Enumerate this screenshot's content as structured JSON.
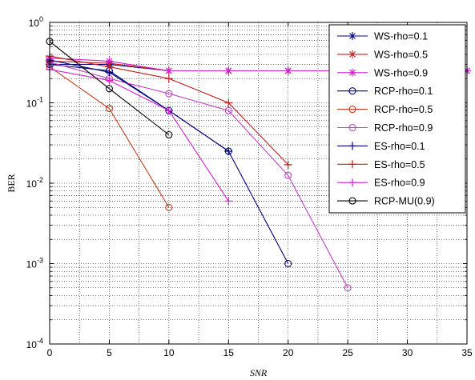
{
  "chart_data": {
    "type": "line",
    "title": "",
    "xlabel": "SNR",
    "ylabel": "BER",
    "x_scale": "linear",
    "y_scale": "log",
    "xlim": [
      0,
      35
    ],
    "ylim": [
      0.0001,
      1
    ],
    "x_ticks": [
      "0",
      "5",
      "10",
      "15",
      "20",
      "25",
      "30",
      "35"
    ],
    "y_ticks": [
      {
        "base": "10",
        "exp": "0",
        "value": 1
      },
      {
        "base": "10",
        "exp": "-1",
        "value": 0.1
      },
      {
        "base": "10",
        "exp": "-2",
        "value": 0.01
      },
      {
        "base": "10",
        "exp": "-3",
        "value": 0.001
      },
      {
        "base": "10",
        "exp": "-4",
        "value": 0.0001
      }
    ],
    "grid": true,
    "legend_position": "top-right",
    "series": [
      {
        "name": "WS-rho=0.1",
        "color": "#00007f",
        "marker": "asterisk",
        "x": [
          0,
          5,
          10,
          15,
          20,
          25,
          30,
          35
        ],
        "y": [
          0.3,
          0.3,
          0.25,
          0.25,
          0.25,
          0.25,
          0.25,
          0.25
        ]
      },
      {
        "name": "WS-rho=0.5",
        "color": "#bf2020",
        "marker": "asterisk",
        "x": [
          0,
          5,
          10,
          15,
          20,
          25,
          30,
          35
        ],
        "y": [
          0.33,
          0.31,
          0.25,
          0.25,
          0.25,
          0.25,
          0.25,
          0.25
        ]
      },
      {
        "name": "WS-rho=0.9",
        "color": "#d020d0",
        "marker": "asterisk",
        "x": [
          0,
          5,
          10,
          15,
          20,
          25,
          30,
          35
        ],
        "y": [
          0.36,
          0.33,
          0.25,
          0.25,
          0.25,
          0.25,
          0.25,
          0.25
        ]
      },
      {
        "name": "RCP-rho=0.1",
        "color": "#00007f",
        "marker": "circle",
        "x": [
          0,
          5,
          10,
          15,
          20
        ],
        "y": [
          0.3,
          0.25,
          0.08,
          0.025,
          0.001
        ]
      },
      {
        "name": "RCP-rho=0.5",
        "color": "#bf4020",
        "marker": "circle",
        "x": [
          0,
          5,
          10
        ],
        "y": [
          0.28,
          0.085,
          0.005
        ]
      },
      {
        "name": "RCP-rho=0.9",
        "color": "#c040c0",
        "marker": "circle",
        "x": [
          0,
          5,
          10,
          15,
          20,
          25
        ],
        "y": [
          0.32,
          0.2,
          0.13,
          0.08,
          0.0125,
          0.0005
        ]
      },
      {
        "name": "ES-rho=0.1",
        "color": "#00007f",
        "marker": "plus",
        "x": [
          0,
          5,
          10,
          15
        ],
        "y": [
          0.34,
          0.24,
          0.08,
          0.025
        ]
      },
      {
        "name": "ES-rho=0.5",
        "color": "#bf2020",
        "marker": "plus",
        "x": [
          0,
          5,
          10,
          15,
          20
        ],
        "y": [
          0.38,
          0.28,
          0.2,
          0.1,
          0.017
        ]
      },
      {
        "name": "ES-rho=0.9",
        "color": "#d020d0",
        "marker": "plus",
        "x": [
          0,
          5,
          10,
          15
        ],
        "y": [
          0.26,
          0.19,
          0.08,
          0.006
        ]
      },
      {
        "name": "RCP-MU(0.9)",
        "color": "#000000",
        "marker": "circle",
        "x": [
          0,
          5,
          10
        ],
        "y": [
          0.58,
          0.15,
          0.04
        ]
      }
    ]
  }
}
